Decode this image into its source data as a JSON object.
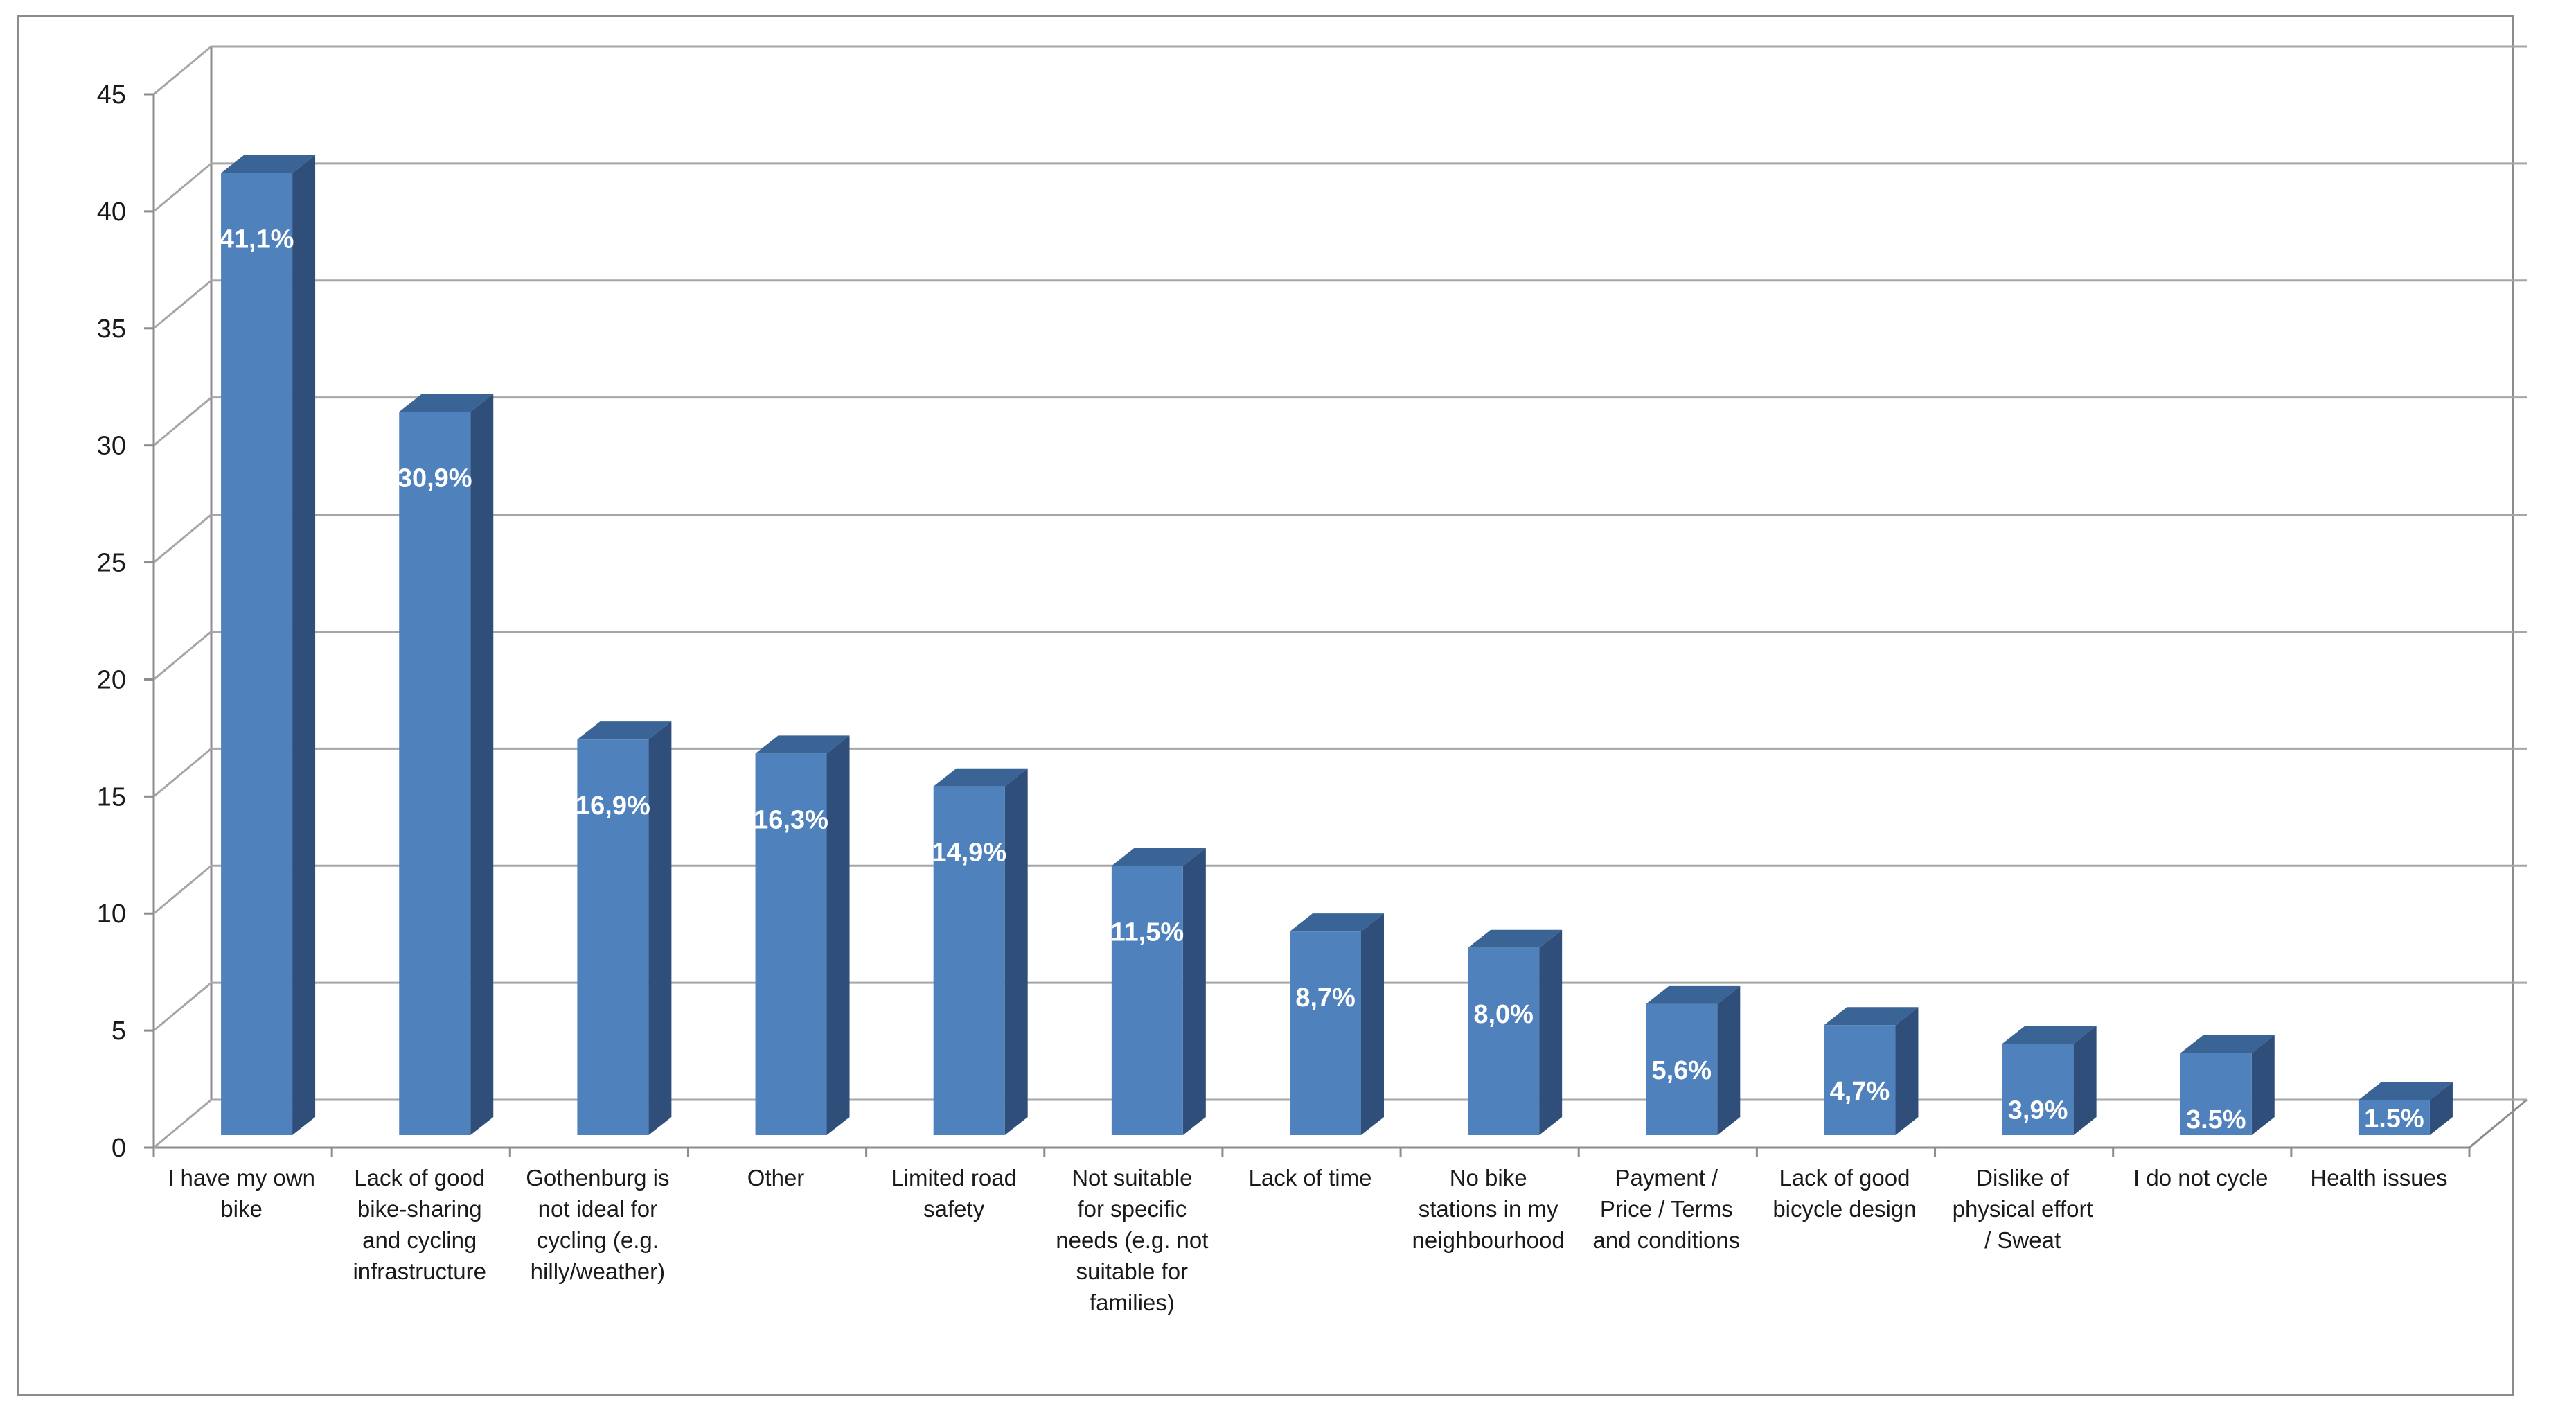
{
  "chart_data": {
    "type": "bar",
    "title": "",
    "xlabel": "",
    "ylabel": "",
    "ylim": [
      0,
      45
    ],
    "yticks": [
      0,
      5,
      10,
      15,
      20,
      25,
      30,
      35,
      40,
      45
    ],
    "grid": true,
    "style": "3d-column",
    "categories": [
      "I have my own bike",
      "Lack of good bike-sharing and cycling infrastructure",
      "Gothenburg is not ideal for cycling (e.g. hilly/weather)",
      "Other",
      "Limited road safety",
      "Not suitable for specific needs (e.g. not suitable for families)",
      "Lack of time",
      "No bike stations in my neighbourhood",
      "Payment / Price / Terms and conditions",
      "Lack of good bicycle design",
      "Dislike of physical effort / Sweat",
      "I do not cycle",
      "Health issues"
    ],
    "category_lines": [
      [
        "I have my own",
        "bike"
      ],
      [
        "Lack of good",
        "bike-sharing",
        "and cycling",
        "infrastructure"
      ],
      [
        "Gothenburg is",
        "not ideal for",
        "cycling (e.g.",
        "hilly/weather)"
      ],
      [
        "Other"
      ],
      [
        "Limited road",
        "safety"
      ],
      [
        "Not suitable",
        "for specific",
        "needs (e.g. not",
        "suitable for",
        "families)"
      ],
      [
        "Lack of time"
      ],
      [
        "No bike",
        "stations in my",
        "neighbourhood"
      ],
      [
        "Payment /",
        "Price / Terms",
        "and conditions"
      ],
      [
        "Lack of good",
        "bicycle design"
      ],
      [
        "Dislike of",
        "physical effort",
        "/ Sweat"
      ],
      [
        "I do not cycle"
      ],
      [
        "Health issues"
      ]
    ],
    "values": [
      41.1,
      30.9,
      16.9,
      16.3,
      14.9,
      11.5,
      8.7,
      8.0,
      5.6,
      4.7,
      3.9,
      3.5,
      1.5
    ],
    "data_labels": [
      "41,1%",
      "30,9%",
      "16,9%",
      "16,3%",
      "14,9%",
      "11,5%",
      "8,7%",
      "8,0%",
      "5,6%",
      "4,7%",
      "3,9%",
      "3.5%",
      "1.5%"
    ],
    "colors": {
      "bar_front": "#4f81bd",
      "bar_side": "#2f4f7a",
      "bar_top": "#3b6496",
      "grid": "#a6a6a6",
      "axis": "#8c8c8c"
    }
  }
}
